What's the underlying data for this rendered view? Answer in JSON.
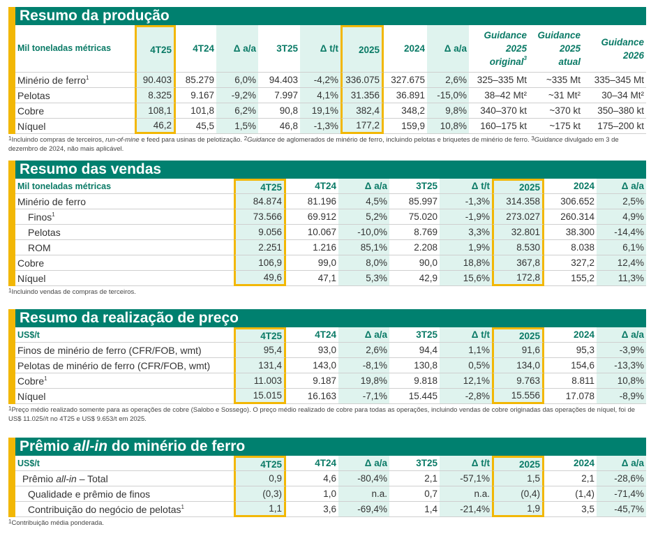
{
  "colors": {
    "teal": "#00806f",
    "header_text": "#0a7a66",
    "highlight": "#f2b705",
    "mint": "#dff3ee"
  },
  "sections": [
    {
      "id": "producao",
      "title": [
        {
          "t": "Resumo da produção"
        }
      ],
      "unit": "Mil toneladas métricas",
      "columns": [
        "4T25",
        "4T24",
        "Δ a/a",
        "3T25",
        "Δ t/t",
        "2025",
        "2024",
        "Δ a/a",
        "Guidance 2025 original³",
        "Guidance 2025 atual",
        "Guidance 2026"
      ],
      "rows": [
        {
          "label": [
            {
              "t": "Minério de ferro"
            },
            {
              "t": "1",
              "s": true
            }
          ],
          "values": [
            "90.403",
            "85.279",
            "6,0%",
            "94.403",
            "-4,2%",
            "336.075",
            "327.675",
            "2,6%",
            "325–335 Mt",
            "~335 Mt",
            "335–345 Mt"
          ]
        },
        {
          "label": [
            {
              "t": "Pelotas"
            }
          ],
          "values": [
            "8.325",
            "9.167",
            "-9,2%",
            "7.997",
            "4,1%",
            "31.356",
            "36.891",
            "-15,0%",
            "38–42 Mt²",
            "~31 Mt²",
            "30–34 Mt²"
          ]
        },
        {
          "label": [
            {
              "t": "Cobre"
            }
          ],
          "values": [
            "108,1",
            "101,8",
            "6,2%",
            "90,8",
            "19,1%",
            "382,4",
            "348,2",
            "9,8%",
            "340–370 kt",
            "~370 kt",
            "350–380 kt"
          ]
        },
        {
          "label": [
            {
              "t": "Níquel"
            }
          ],
          "values": [
            "46,2",
            "45,5",
            "1,5%",
            "46,8",
            "-1,3%",
            "177,2",
            "159,9",
            "10,8%",
            "160–175 kt",
            "~175 kt",
            "175–200 kt"
          ]
        }
      ],
      "footnote": [
        {
          "t": "1",
          "s": true
        },
        {
          "t": "Incluindo compras de terceiros, "
        },
        {
          "t": "run-of-mine",
          "i": true
        },
        {
          "t": " e feed para usinas de pelotização. "
        },
        {
          "t": "2",
          "s": true
        },
        {
          "t": "Guidance",
          "i": true
        },
        {
          "t": " de aglomerados de minério de ferro, incluindo pelotas e briquetes de minério de ferro. "
        },
        {
          "t": "3",
          "s": true
        },
        {
          "t": "Guidance",
          "i": true
        },
        {
          "t": " divulgado em 3 de dezembro de 2024, não mais aplicável."
        }
      ]
    },
    {
      "id": "vendas",
      "title": [
        {
          "t": "Resumo das vendas"
        }
      ],
      "unit": "Mil toneladas métricas",
      "columns": [
        "4T25",
        "4T24",
        "Δ a/a",
        "3T25",
        "Δ t/t",
        "2025",
        "2024",
        "Δ a/a"
      ],
      "rows": [
        {
          "label": [
            {
              "t": "Minério de ferro"
            }
          ],
          "values": [
            "84.874",
            "81.196",
            "4,5%",
            "85.997",
            "-1,3%",
            "314.358",
            "306.652",
            "2,5%"
          ]
        },
        {
          "indent": 1,
          "label": [
            {
              "t": "Finos"
            },
            {
              "t": "1",
              "s": true
            }
          ],
          "values": [
            "73.566",
            "69.912",
            "5,2%",
            "75.020",
            "-1,9%",
            "273.027",
            "260.314",
            "4,9%"
          ]
        },
        {
          "indent": 1,
          "label": [
            {
              "t": "Pelotas"
            }
          ],
          "values": [
            "9.056",
            "10.067",
            "-10,0%",
            "8.769",
            "3,3%",
            "32.801",
            "38.300",
            "-14,4%"
          ]
        },
        {
          "indent": 1,
          "label": [
            {
              "t": "ROM"
            }
          ],
          "values": [
            "2.251",
            "1.216",
            "85,1%",
            "2.208",
            "1,9%",
            "8.530",
            "8.038",
            "6,1%"
          ]
        },
        {
          "label": [
            {
              "t": "Cobre"
            }
          ],
          "values": [
            "106,9",
            "99,0",
            "8,0%",
            "90,0",
            "18,8%",
            "367,8",
            "327,2",
            "12,4%"
          ]
        },
        {
          "label": [
            {
              "t": "Níquel"
            }
          ],
          "values": [
            "49,6",
            "47,1",
            "5,3%",
            "42,9",
            "15,6%",
            "172,8",
            "155,2",
            "11,3%"
          ]
        }
      ],
      "footnote": [
        {
          "t": "1",
          "s": true
        },
        {
          "t": "Incluindo vendas de compras de terceiros."
        }
      ]
    },
    {
      "id": "preco",
      "title": [
        {
          "t": "Resumo da realização de preço"
        }
      ],
      "unit": "US$/t",
      "columns": [
        "4T25",
        "4T24",
        "Δ a/a",
        "3T25",
        "Δ t/t",
        "2025",
        "2024",
        "Δ a/a"
      ],
      "rows": [
        {
          "label": [
            {
              "t": "Finos de minério de ferro (CFR/FOB, wmt)"
            }
          ],
          "values": [
            "95,4",
            "93,0",
            "2,6%",
            "94,4",
            "1,1%",
            "91,6",
            "95,3",
            "-3,9%"
          ]
        },
        {
          "label": [
            {
              "t": "Pelotas de minério de ferro (CFR/FOB, wmt)"
            }
          ],
          "values": [
            "131,4",
            "143,0",
            "-8,1%",
            "130,8",
            "0,5%",
            "134,0",
            "154,6",
            "-13,3%"
          ]
        },
        {
          "label": [
            {
              "t": "Cobre"
            },
            {
              "t": "1",
              "s": true
            }
          ],
          "values": [
            "11.003",
            "9.187",
            "19,8%",
            "9.818",
            "12,1%",
            "9.763",
            "8.811",
            "10,8%"
          ]
        },
        {
          "label": [
            {
              "t": "Níquel"
            }
          ],
          "values": [
            "15.015",
            "16.163",
            "-7,1%",
            "15.445",
            "-2,8%",
            "15.556",
            "17.078",
            "-8,9%"
          ]
        }
      ],
      "footnote": [
        {
          "t": "1",
          "s": true
        },
        {
          "t": "Preço médio realizado somente para as operações de cobre (Salobo e Sossego). O preço médio realizado de cobre para todas as operações, incluindo vendas de cobre originadas das operações de níquel, foi de US$ 11.025//t no 4T25 e US$ 9.653/t em 2025."
        }
      ]
    },
    {
      "id": "premio",
      "title": [
        {
          "t": "Prêmio "
        },
        {
          "t": "all-in",
          "i": true
        },
        {
          "t": " do minério de ferro"
        }
      ],
      "unit": "US$/t",
      "columns": [
        "4T25",
        "4T24",
        "Δ a/a",
        "3T25",
        "Δ t/t",
        "2025",
        "2024",
        "Δ a/a"
      ],
      "rows": [
        {
          "indent": 2,
          "label": [
            {
              "t": "Prêmio "
            },
            {
              "t": "all-in",
              "i": true
            },
            {
              "t": " – Total"
            }
          ],
          "values": [
            "0,9",
            "4,6",
            "-80,4%",
            "2,1",
            "-57,1%",
            "1,5",
            "2,1",
            "-28,6%"
          ]
        },
        {
          "indent": 1,
          "label": [
            {
              "t": "Qualidade e prêmio de finos"
            }
          ],
          "values": [
            "(0,3)",
            "1,0",
            "n.a.",
            "0,7",
            "n.a.",
            "(0,4)",
            "(1,4)",
            "-71,4%"
          ]
        },
        {
          "indent": 1,
          "label": [
            {
              "t": "Contribuição do negócio de pelotas"
            },
            {
              "t": "1",
              "s": true
            }
          ],
          "values": [
            "1,1",
            "3,6",
            "-69,4%",
            "1,4",
            "-21,4%",
            "1,9",
            "3,5",
            "-45,7%"
          ]
        }
      ],
      "footnote": [
        {
          "t": "1",
          "s": true
        },
        {
          "t": "Contribuição média ponderada."
        }
      ]
    }
  ]
}
